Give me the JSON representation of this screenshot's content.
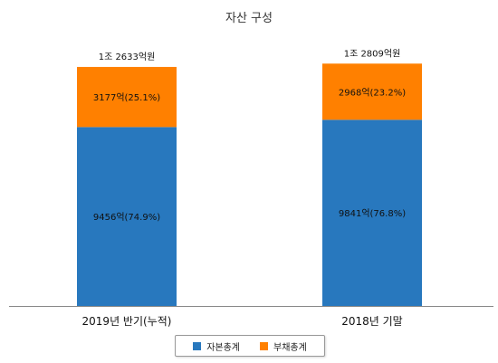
{
  "chart_data": {
    "type": "bar",
    "stacked": true,
    "title": "자산 구성",
    "categories": [
      "2019년 반기(누적)",
      "2018년 기말"
    ],
    "series": [
      {
        "name": "자본총계",
        "color": "#2878be",
        "values": [
          9456,
          9841
        ],
        "labels": [
          "9456억(74.9%)",
          "9841억(76.8%)"
        ]
      },
      {
        "name": "부채총계",
        "color": "#ff8000",
        "values": [
          3177,
          2968
        ],
        "labels": [
          "3177억(25.1%)",
          "2968억(23.2%)"
        ]
      }
    ],
    "totals": [
      12633,
      12809
    ],
    "total_labels": [
      "1조 2633억원",
      "1조 2809억원"
    ],
    "ylim": [
      0,
      13300
    ],
    "grid": false,
    "legend_position": "bottom"
  }
}
